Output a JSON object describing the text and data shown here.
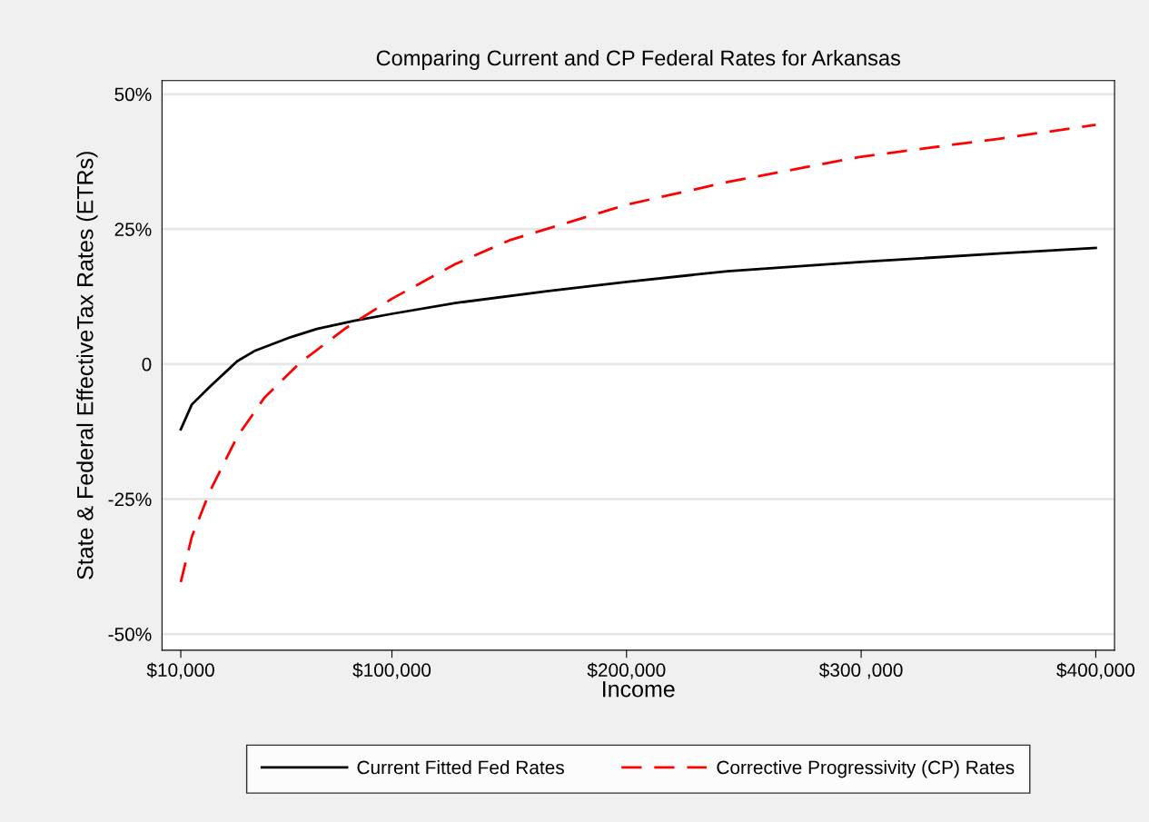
{
  "chart_data": {
    "type": "line",
    "title": "Comparing Current and CP Federal Rates for Arkansas",
    "xlabel": "Income",
    "ylabel": "State & Federal EffectiveTax Rates (ETRs)",
    "xlim": [
      2000,
      408000
    ],
    "ylim": [
      -53,
      52.5
    ],
    "xticks": [
      {
        "value": 10000,
        "label": "$10,000"
      },
      {
        "value": 100000,
        "label": "$100,000"
      },
      {
        "value": 200000,
        "label": "$200,000"
      },
      {
        "value": 300000,
        "label": "$300 ,000"
      },
      {
        "value": 400000,
        "label": "$400,000"
      }
    ],
    "yticks": [
      {
        "value": -50,
        "label": "-50%"
      },
      {
        "value": -25,
        "label": "-25%"
      },
      0,
      {
        "value": 25,
        "label": "25%"
      },
      {
        "value": 50,
        "label": "50%"
      }
    ],
    "grid": "y",
    "legend": "bottom",
    "marker": "none",
    "series": [
      {
        "name": "Current Fitted Fed Rates",
        "color": "#000000",
        "line_style": "solid",
        "x": [
          10000,
          14700,
          22400,
          34000,
          41800,
          57000,
          68000,
          84000,
          100000,
          127000,
          166000,
          200000,
          243000,
          300000,
          360000,
          400000
        ],
        "values": [
          -12.1,
          -7.5,
          -4.2,
          0.5,
          2.5,
          5.0,
          6.5,
          8.0,
          9.3,
          11.3,
          13.5,
          15.2,
          17.2,
          18.9,
          20.5,
          21.5
        ]
      },
      {
        "name": "Corrective Progressivity (CP) Rates",
        "color": "#ff0000",
        "line_style": "dashed",
        "x": [
          10000,
          14700,
          22400,
          34000,
          45700,
          61000,
          80500,
          100000,
          127000,
          150000,
          200000,
          243000,
          300000,
          360000,
          400000
        ],
        "values": [
          -40.4,
          -32,
          -23.6,
          -13.5,
          -6.2,
          0.3,
          6.7,
          12.1,
          18.5,
          22.9,
          29.5,
          33.7,
          38.4,
          41.8,
          44.3
        ]
      }
    ]
  }
}
